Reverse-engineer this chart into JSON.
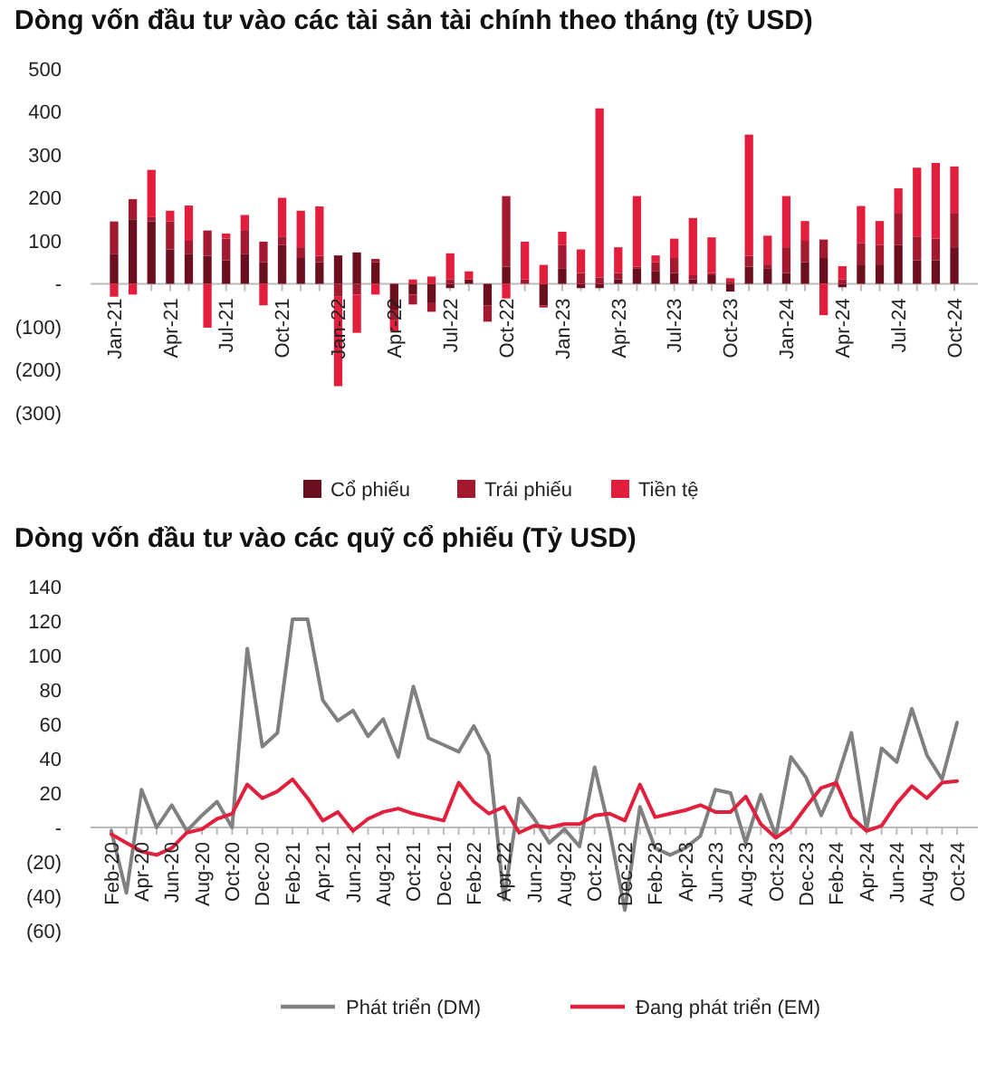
{
  "chart_data": [
    {
      "type": "bar",
      "title": "Dòng vốn đầu tư vào các tài sản tài chính theo tháng (tỷ USD)",
      "stacked": true,
      "legend": "bottom",
      "categories": [
        "Jan-21",
        null,
        null,
        "Apr-21",
        null,
        null,
        "Jul-21",
        null,
        null,
        "Oct-21",
        null,
        null,
        "Jan-22",
        null,
        null,
        "Apr-22",
        null,
        null,
        "Jul-22",
        null,
        null,
        "Oct-22",
        null,
        null,
        "Jan-23",
        null,
        null,
        "Apr-23",
        null,
        null,
        "Jul-23",
        null,
        null,
        "Oct-23",
        null,
        null,
        "Jan-24",
        null,
        null,
        "Apr-24",
        null,
        null,
        "Jul-24",
        null,
        null,
        "Oct-24"
      ],
      "ylim": [
        -300,
        500
      ],
      "yticks": [
        500,
        400,
        300,
        200,
        100,
        {
          "value": 0,
          "label": "-"
        },
        {
          "value": -100,
          "label": "(100)"
        },
        {
          "value": -200,
          "label": "(200)"
        },
        {
          "value": -300,
          "label": "(300)"
        }
      ],
      "series": [
        {
          "name": "Cổ phiếu",
          "color": "#6b0f1f",
          "values": [
            70,
            150,
            145,
            80,
            70,
            65,
            55,
            70,
            50,
            90,
            60,
            50,
            66,
            73,
            50,
            -60,
            -25,
            -45,
            -10,
            10,
            -50,
            40,
            0,
            -50,
            35,
            -10,
            -10,
            10,
            35,
            30,
            25,
            10,
            20,
            -18,
            40,
            35,
            25,
            50,
            60,
            -8,
            45,
            45,
            90,
            55,
            55,
            85
          ]
        },
        {
          "name": "Trái phiếu",
          "color": "#a31a30",
          "values": [
            75,
            47,
            10,
            65,
            30,
            59,
            50,
            55,
            48,
            20,
            25,
            15,
            -30,
            -25,
            8,
            -25,
            -23,
            -20,
            10,
            0,
            -38,
            164,
            10,
            -5,
            55,
            25,
            15,
            15,
            5,
            20,
            35,
            10,
            5,
            5,
            25,
            10,
            60,
            50,
            43,
            10,
            50,
            45,
            75,
            55,
            50,
            80
          ]
        },
        {
          "name": "Tiền tệ",
          "color": "#e31e3c",
          "values": [
            -30,
            -25,
            110,
            25,
            82,
            -102,
            12,
            35,
            -50,
            90,
            85,
            115,
            -208,
            -89,
            -25,
            -25,
            10,
            17,
            61,
            19,
            0,
            -34,
            88,
            44,
            31,
            55,
            393,
            60,
            164,
            16,
            45,
            133,
            83,
            8,
            282,
            67,
            119,
            46,
            -73,
            31,
            86,
            56,
            57,
            160,
            176,
            108
          ]
        }
      ]
    },
    {
      "type": "line",
      "title": "Dòng vốn đầu tư vào các quỹ cổ phiếu (Tỷ USD)",
      "legend": "bottom",
      "categories": [
        "Feb-20",
        null,
        "Apr-20",
        null,
        "Jun-20",
        null,
        "Aug-20",
        null,
        "Oct-20",
        null,
        "Dec-20",
        null,
        "Feb-21",
        null,
        "Apr-21",
        null,
        "Jun-21",
        null,
        "Aug-21",
        null,
        "Oct-21",
        null,
        "Dec-21",
        null,
        "Feb-22",
        null,
        "Apr-22",
        null,
        "Jun-22",
        null,
        "Aug-22",
        null,
        "Oct-22",
        null,
        "Dec-22",
        null,
        "Feb-23",
        null,
        "Apr-23",
        null,
        "Jun-23",
        null,
        "Aug-23",
        null,
        "Oct-23",
        null,
        "Dec-23",
        null,
        "Feb-24",
        null,
        "Apr-24",
        null,
        "Jun-24",
        null,
        "Aug-24",
        null,
        "Oct-24"
      ],
      "ylim": [
        -60,
        140
      ],
      "yticks": [
        140,
        120,
        100,
        80,
        60,
        40,
        20,
        {
          "value": 0,
          "label": "-"
        },
        {
          "value": -20,
          "label": "(20)"
        },
        {
          "value": -40,
          "label": "(40)"
        },
        {
          "value": -60,
          "label": "(60)"
        }
      ],
      "series": [
        {
          "name": "Phát triển (DM)",
          "color": "#808080",
          "values": [
            -2,
            -38,
            22,
            0,
            13,
            -2,
            7,
            15,
            0,
            104,
            47,
            55,
            121,
            121,
            74,
            62,
            68,
            53,
            63,
            41,
            82,
            52,
            48,
            44,
            59,
            42,
            -42,
            17,
            5,
            -9,
            -1,
            -11,
            35,
            -2,
            -48,
            12,
            -12,
            -16,
            -12,
            -5,
            22,
            20,
            -9,
            19,
            -5,
            41,
            29,
            7,
            27,
            55,
            -1,
            46,
            38,
            69,
            42,
            28,
            61
          ]
        },
        {
          "name": "Đang phát triển (EM)",
          "color": "#e0203d",
          "values": [
            -4,
            -9,
            -14,
            -16,
            -12,
            -3,
            -1,
            5,
            8,
            25,
            17,
            21,
            28,
            17,
            4,
            9,
            -2,
            5,
            9,
            11,
            8,
            6,
            4,
            26,
            15,
            8,
            12,
            -3,
            1,
            0,
            2,
            2,
            7,
            8,
            4,
            25,
            6,
            8,
            10,
            13,
            9,
            9,
            18,
            2,
            -6,
            0,
            12,
            23,
            26,
            6,
            -2,
            1,
            14,
            24,
            17,
            26,
            27
          ]
        }
      ]
    }
  ]
}
